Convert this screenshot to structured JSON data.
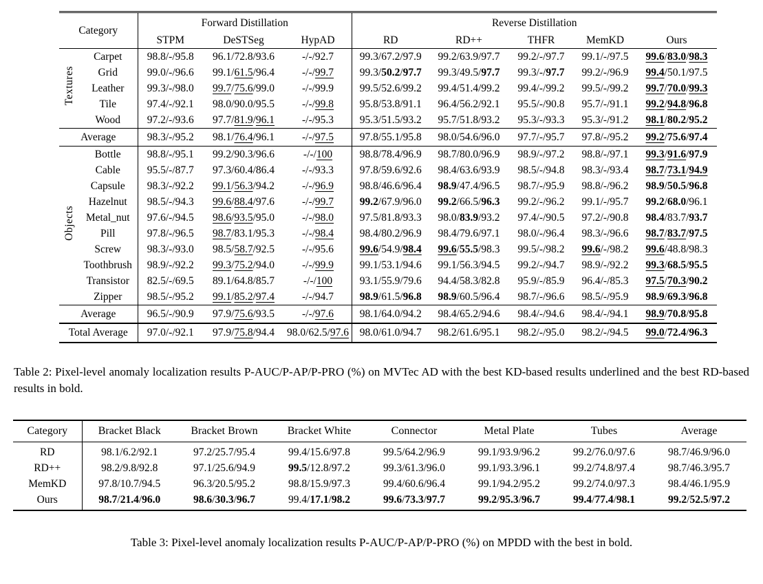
{
  "table2": {
    "header": {
      "category_label": "Category",
      "groups": [
        {
          "label": "Forward Distillation",
          "methods": [
            "STPM",
            "DeSTSeg",
            "HypAD"
          ]
        },
        {
          "label": "Reverse Distillation",
          "methods": [
            "RD",
            "RD++",
            "THFR",
            "MemKD",
            "Ours"
          ]
        }
      ]
    },
    "sections": [
      {
        "label": "Textures",
        "rows": [
          {
            "name": "Carpet",
            "cells": [
              "98.8/-/95.8",
              "96.1/72.8/93.6",
              "-/-/92.7",
              "99.3/67.2/97.9",
              "99.2/63.9/97.7",
              "99.2/-/97.7",
              "99.1/-/97.5",
              "99.6:bu/83.0:bu/98.3:bu"
            ]
          },
          {
            "name": "Grid",
            "cells": [
              "99.0/-/96.6",
              "99.1/61.5:u/96.4",
              "-/-/99.7:u",
              "99.3/50.2:b/97.7:b",
              "99.3/49.5/97.7:b",
              "99.3/-/97.7:b",
              "99.2/-/96.9",
              "99.4:bu/50.1/97.5"
            ]
          },
          {
            "name": "Leather",
            "cells": [
              "99.3/-/98.0",
              "99.7:u/75.6:u/99.0",
              "-/-/99.9",
              "99.5/52.6/99.2",
              "99.4/51.4/99.2",
              "99.4/-/99.2",
              "99.5/-/99.2",
              "99.7:bu/70.0:bu/99.3:bu"
            ]
          },
          {
            "name": "Tile",
            "cells": [
              "97.4/-/92.1",
              "98.0/90.0/95.5",
              "-/-/99.8:u",
              "95.8/53.8/91.1",
              "96.4/56.2/92.1",
              "95.5/-/90.8",
              "95.7/-/91.1",
              "99.2:bu/94.8:bu/96.8:b"
            ]
          },
          {
            "name": "Wood",
            "cells": [
              "97.2/-/93.6",
              "97.7/81.9:u/96.1:u",
              "-/-/95.3",
              "95.3/51.5/93.2",
              "95.7/51.8/93.2",
              "95.3/-/93.3",
              "95.3/-/91.2",
              "98.1:bu/80.2:b/95.2:b"
            ]
          }
        ],
        "average": {
          "name": "Average",
          "cells": [
            "98.3/-/95.2",
            "98.1/76.4:u/96.1",
            "-/-/97.5:u",
            "97.8/55.1/95.8",
            "98.0/54.6/96.0",
            "97.7/-/95.7",
            "97.8/-/95.2",
            "99.2:bu/75.6:b/97.4:b"
          ]
        }
      },
      {
        "label": "Objects",
        "rows": [
          {
            "name": "Bottle",
            "cells": [
              "98.8/-/95.1",
              "99.2/90.3/96.6",
              "-/-/100:u",
              "98.8/78.4/96.9",
              "98.7/80.0/96.9",
              "98.9/-/97.2",
              "98.8/-/97.1",
              "99.3:bu/91.6:bu/97.9:b"
            ]
          },
          {
            "name": "Cable",
            "cells": [
              "95.5/-/87.7",
              "97.3/60.4/86.4",
              "-/-/93.3",
              "97.8/59.6/92.6",
              "98.4/63.6/93.9",
              "98.5/-/94.8",
              "98.3/-/93.4",
              "98.7:bu/73.1:bu/94.9:bu"
            ]
          },
          {
            "name": "Capsule",
            "cells": [
              "98.3/-/92.2",
              "99.1:u/56.3:u/94.2",
              "-/-/96.9:u",
              "98.8/46.6/96.4",
              "98.9:b/47.4/96.5",
              "98.7/-/95.9",
              "98.8/-/96.2",
              "98.9:b/50.5:b/96.8:b"
            ]
          },
          {
            "name": "Hazelnut",
            "cells": [
              "98.5/-/94.3",
              "99.6:u/88.4:u/97.6",
              "-/-/99.7:u",
              "99.2:b/67.9/96.0",
              "99.2:b/66.5/96.3:b",
              "99.2/-/96.2",
              "99.1/-/95.7",
              "99.2:b/68.0:b/96.1"
            ]
          },
          {
            "name": "Metal_nut",
            "cells": [
              "97.6/-/94.5",
              "98.6:u/93.5:u/95.0",
              "-/-/98.0:u",
              "97.5/81.8/93.3",
              "98.0/83.9:b/93.2",
              "97.4/-/90.5",
              "97.2/-/90.8",
              "98.4:b/83.7/93.7:b"
            ]
          },
          {
            "name": "Pill",
            "cells": [
              "97.8/-/96.5",
              "98.7:u/83.1/95.3",
              "-/-/98.4:u",
              "98.4/80.2/96.9",
              "98.4/79.6/97.1",
              "98.0/-/96.4",
              "98.3/-/96.6",
              "98.7:bu/83.7:bu/97.5:b"
            ]
          },
          {
            "name": "Screw",
            "cells": [
              "98.3/-/93.0",
              "98.5/58.7:u/92.5",
              "-/-/95.6",
              "99.6:bu/54.9/98.4:bu",
              "99.6:bu/55.5:b/98.3",
              "99.5/-/98.2",
              "99.6:bu/-/98.2",
              "99.6:bu/48.8/98.3"
            ]
          },
          {
            "name": "Toothbrush",
            "cells": [
              "98.9/-/92.2",
              "99.3:u/75.2:u/94.0",
              "-/-/99.9:u",
              "99.1/53.1/94.6",
              "99.1/56.3/94.5",
              "99.2/-/94.7",
              "98.9/-/92.2",
              "99.3:bu/68.5:b/95.5:b"
            ]
          },
          {
            "name": "Transistor",
            "cells": [
              "82.5/-/69.5",
              "89.1/64.8/85.7",
              "-/-/100:u",
              "93.1/55.9/79.6",
              "94.4/58.3/82.8",
              "95.9/-/85.9",
              "96.4/-/85.3",
              "97.5:bu/70.3:bu/90.2:b"
            ]
          },
          {
            "name": "Zipper",
            "cells": [
              "98.5/-/95.2",
              "99.1:u/85.2:u/97.4:u",
              "-/-/94.7",
              "98.9:b/61.5/96.8:b",
              "98.9:b/60.5/96.4",
              "98.7/-/96.6",
              "98.5/-/95.9",
              "98.9:b/69.3:b/96.8:b"
            ]
          }
        ],
        "average": {
          "name": "Average",
          "cells": [
            "96.5/-/90.9",
            "97.9/75.6:u/93.5",
            "-/-/97.6:u",
            "98.1/64.0/94.2",
            "98.4/65.2/94.6",
            "98.4/-/94.6",
            "98.4/-/94.1",
            "98.9:bu/70.8:b/95.8:b"
          ]
        }
      }
    ],
    "total": {
      "name": "Total Average",
      "cells": [
        "97.0/-/92.1",
        "97.9/75.8:u/94.4",
        "98.0/62.5/97.6:u",
        "98.0/61.0/94.7",
        "98.2/61.6/95.1",
        "98.2/-/95.0",
        "98.2/-/94.5",
        "99.0:bu/72.4:b/96.3:b"
      ]
    },
    "caption": "Table 2: Pixel-level anomaly localization results P-AUC/P-AP/P-PRO (%) on MVTec AD with the best KD-based results underlined and the best RD-based results in bold."
  },
  "table3": {
    "columns": [
      "Category",
      "Bracket Black",
      "Bracket Brown",
      "Bracket White",
      "Connector",
      "Metal Plate",
      "Tubes",
      "Average"
    ],
    "rows": [
      {
        "name": "RD",
        "cells": [
          "98.1/6.2/92.1",
          "97.2/25.7/95.4",
          "99.4/15.6/97.8",
          "99.5/64.2/96.9",
          "99.1/93.9/96.2",
          "99.2/76.0/97.6",
          "98.7/46.9/96.0"
        ]
      },
      {
        "name": "RD++",
        "cells": [
          "98.2/9.8/92.8",
          "97.1/25.6/94.9",
          "99.5:b/12.8/97.2",
          "99.3/61.3/96.0",
          "99.1/93.3/96.1",
          "99.2/74.8/97.4",
          "98.7/46.3/95.7"
        ]
      },
      {
        "name": "MemKD",
        "cells": [
          "97.8/10.7/94.5",
          "96.3/20.5/95.2",
          "98.8/15.9/97.3",
          "99.4/60.6/96.4",
          "99.1/94.2/95.2",
          "99.2/74.0/97.3",
          "98.4/46.1/95.9"
        ]
      },
      {
        "name": "Ours",
        "cells": [
          "98.7:b/21.4:b/96.0:b",
          "98.6:b/30.3:b/96.7:b",
          "99.4/17.1:b/98.2:b",
          "99.6:b/73.3:b/97.7:b",
          "99.2:b/95.3:b/96.7:b",
          "99.4:b/77.4:b/98.1:b",
          "99.2:b/52.5:b/97.2:b"
        ]
      }
    ],
    "caption": "Table 3: Pixel-level anomaly localization results P-AUC/P-AP/P-PRO (%) on MPDD with the best in bold."
  }
}
